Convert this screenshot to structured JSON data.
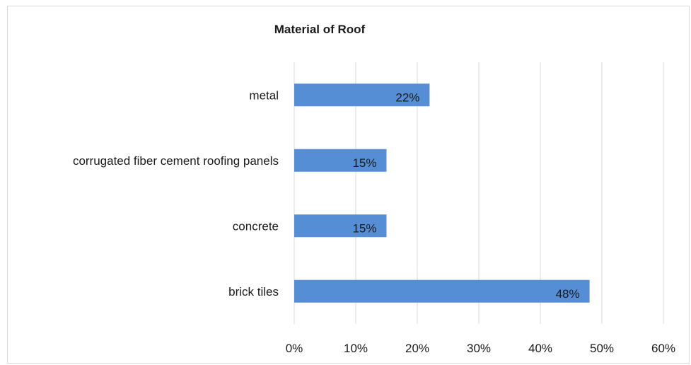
{
  "colors": {
    "bar": "#558ed5",
    "grid": "#d9d9d9",
    "text": "#1a1a1a"
  },
  "chart_data": {
    "type": "bar",
    "orientation": "horizontal",
    "title": "Material of Roof",
    "categories": [
      "metal",
      "corrugated fiber cement roofing panels",
      "concrete",
      "brick tiles"
    ],
    "values": [
      22,
      15,
      15,
      48
    ],
    "data_labels": [
      "22%",
      "15%",
      "15%",
      "48%"
    ],
    "unit": "%",
    "xlim": [
      0,
      60
    ],
    "x_ticks": [
      0,
      10,
      20,
      30,
      40,
      50,
      60
    ],
    "x_tick_labels": [
      "0%",
      "10%",
      "20%",
      "30%",
      "40%",
      "50%",
      "60%"
    ],
    "grid": "vertical",
    "legend": "none"
  }
}
